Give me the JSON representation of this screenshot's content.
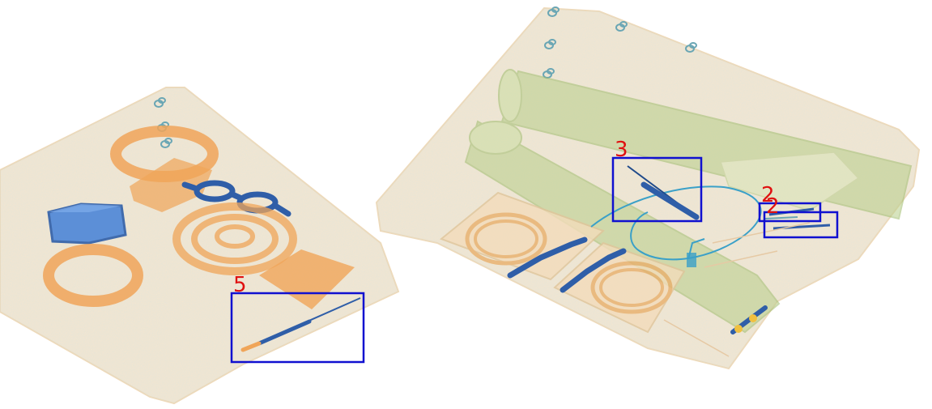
{
  "scene": {
    "kind": "x-ray baggage scan",
    "background": "#ffffff",
    "colors": {
      "tray": "#f6e6cf",
      "organic": "#f0a559",
      "metal": "#2f5ea8",
      "inorganic": "#b8cf8a",
      "box_stroke": "#1010d0",
      "label": "#e01010"
    }
  },
  "annotations": [
    {
      "label": "3"
    },
    {
      "label": "2"
    },
    {
      "label": "2"
    },
    {
      "label": "5"
    }
  ]
}
